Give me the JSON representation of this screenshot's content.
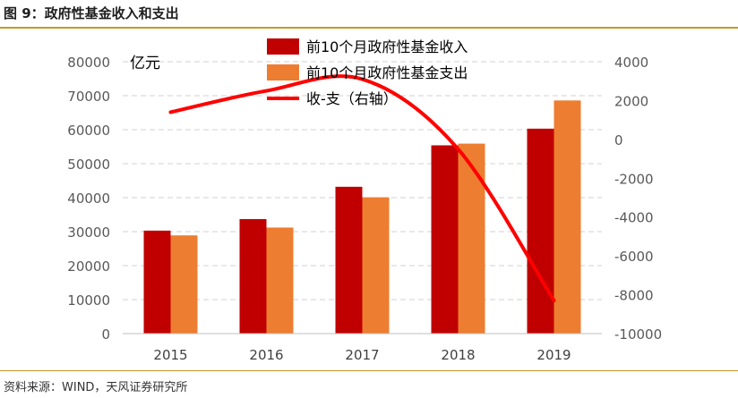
{
  "figure_title": "图 9：政府性基金收入和支出",
  "source": "资料来源：WIND，天风证券研究所",
  "chart_data": {
    "type": "bar",
    "unit_label": "亿元",
    "categories": [
      "2015",
      "2016",
      "2017",
      "2018",
      "2019"
    ],
    "series": [
      {
        "name": "前10个月政府性基金收入",
        "type": "bar",
        "axis": "left",
        "color": "#c00000",
        "values": [
          30300,
          33700,
          43200,
          55400,
          60300
        ]
      },
      {
        "name": "前10个月政府性基金支出",
        "type": "bar",
        "axis": "left",
        "color": "#ed7d31",
        "values": [
          28900,
          31200,
          40100,
          55900,
          68600
        ]
      },
      {
        "name": "收-支（右轴）",
        "type": "line",
        "axis": "right",
        "color": "#ff0000",
        "values": [
          1400,
          2500,
          3100,
          -500,
          -8300
        ]
      }
    ],
    "y_left": {
      "min": 0,
      "max": 80000,
      "ticks": [
        0,
        10000,
        20000,
        30000,
        40000,
        50000,
        60000,
        70000,
        80000
      ]
    },
    "y_right": {
      "min": -10000,
      "max": 4000,
      "ticks": [
        -10000,
        -8000,
        -6000,
        -4000,
        -2000,
        0,
        2000,
        4000
      ]
    },
    "grid": true,
    "legend_position": "top"
  }
}
